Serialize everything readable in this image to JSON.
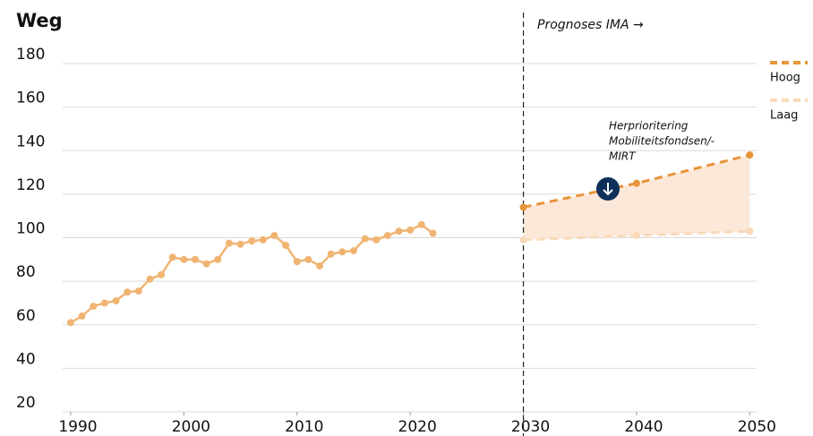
{
  "chart_data": {
    "type": "line",
    "title": "Weg",
    "forecast_label": "Prognoses IMA →",
    "annotation": [
      "Herprioritering",
      "Mobiliteitsfondsen/-",
      "MIRT"
    ],
    "xlim": [
      1988.5,
      2051
    ],
    "xticks": [
      1990,
      2000,
      2010,
      2020,
      2030,
      2040,
      2050
    ],
    "ylim": [
      20,
      180
    ],
    "yticks": [
      20,
      40,
      60,
      80,
      100,
      120,
      140,
      160,
      180
    ],
    "grid": true,
    "forecast_start": 2030,
    "series": [
      {
        "color": "#f0b472",
        "style": "solid",
        "x": [
          1990,
          1991,
          1992,
          1993,
          1994,
          1995,
          1996,
          1997,
          1998,
          1999,
          2000,
          2001,
          2002,
          2003,
          2004,
          2005,
          2006,
          2007,
          2008,
          2009,
          2010,
          2011,
          2012,
          2013,
          2014,
          2015,
          2016,
          2017,
          2018,
          2019,
          2020,
          2021,
          2022
        ],
        "values": [
          61,
          64,
          68.5,
          70,
          71,
          75,
          75.5,
          81,
          83,
          91,
          90,
          90,
          88,
          90,
          97.5,
          97,
          98.5,
          99,
          101,
          96.5,
          89,
          90,
          87,
          92.5,
          93.5,
          94,
          99.5,
          99,
          101,
          103,
          103.5,
          106,
          102
        ]
      },
      {
        "name": "Hoog",
        "color": "#e8943a",
        "style": "dashed",
        "x": [
          2030,
          2040,
          2050
        ],
        "values": [
          114,
          125,
          138
        ]
      },
      {
        "name": "Laag",
        "color": "#f8d9b8",
        "style": "dashed",
        "x": [
          2030,
          2040,
          2050
        ],
        "values": [
          99,
          101,
          103
        ]
      }
    ],
    "band_color": "#fce8d8"
  }
}
